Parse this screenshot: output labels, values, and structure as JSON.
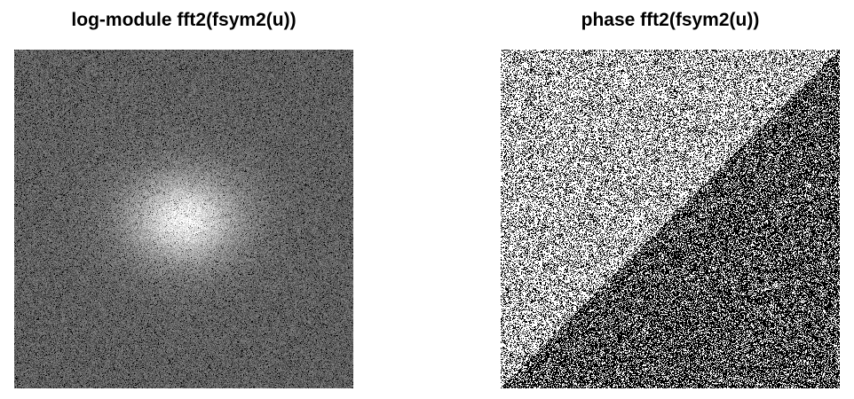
{
  "panels": {
    "left": {
      "title": "log-module fft2(fsym2(u))",
      "kind": "log-magnitude spectrum"
    },
    "right": {
      "title": "phase fft2(fsym2(u))",
      "kind": "phase spectrum"
    }
  },
  "colors": {
    "background": "#ffffff",
    "title_text": "#000000"
  }
}
